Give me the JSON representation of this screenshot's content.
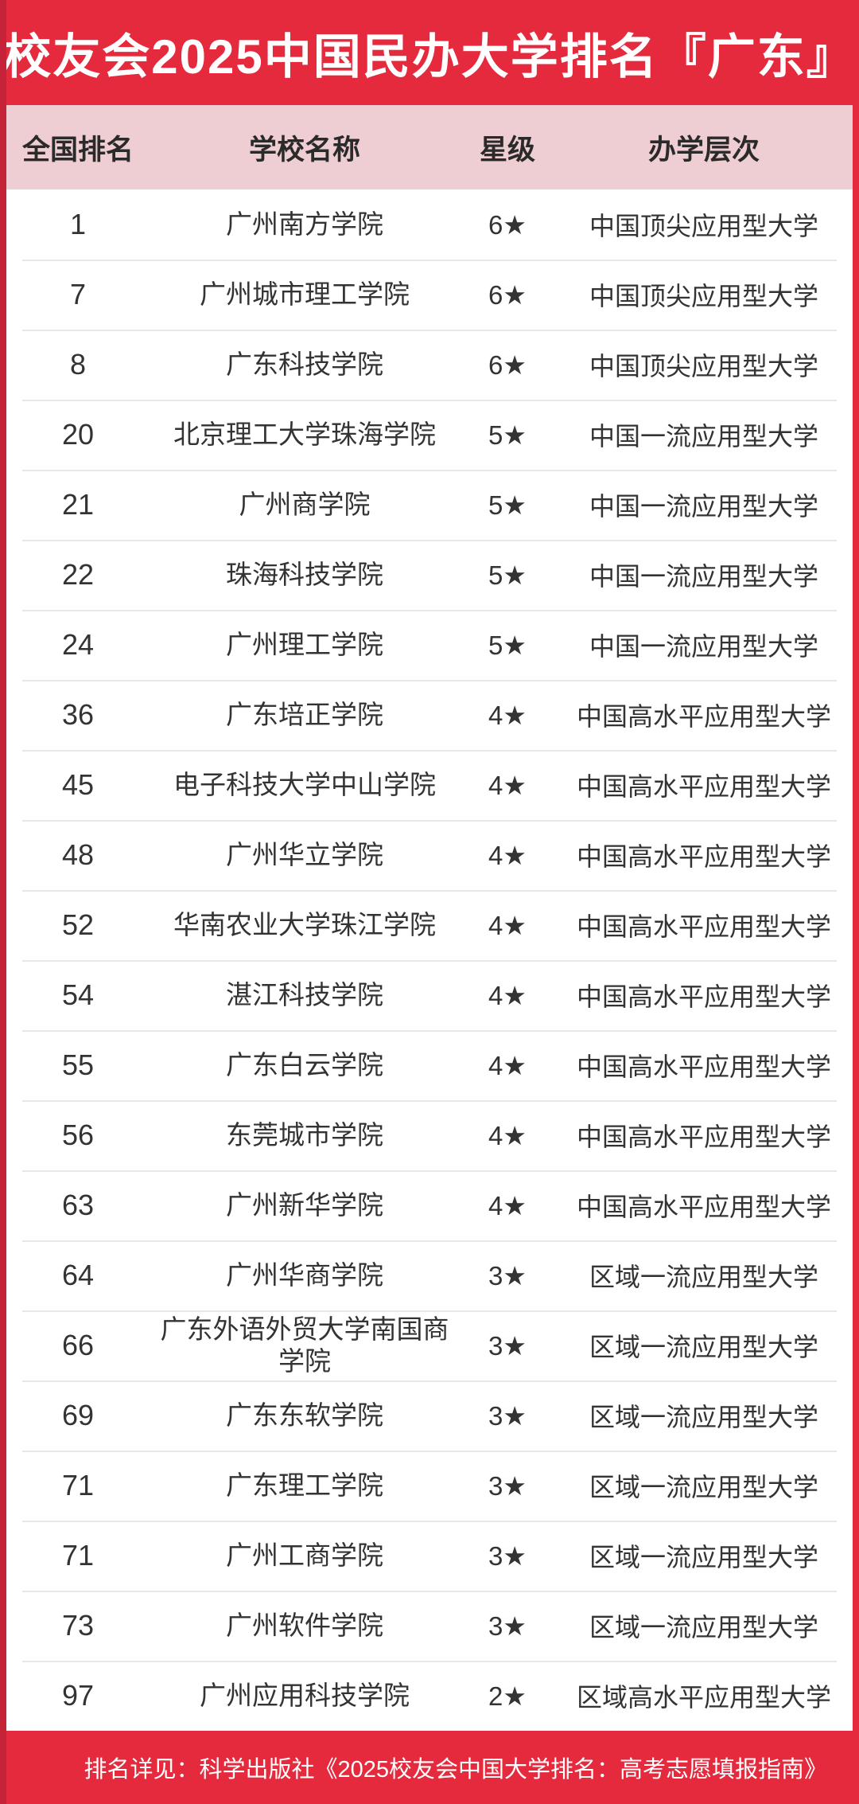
{
  "colors": {
    "background_red": "#e52a3e",
    "edge_dark_red": "#c42338",
    "header_row_pink": "#efced3",
    "row_background": "#ffffff",
    "row_divider_gray": "#e9e6e6",
    "row_text": "#333333",
    "title_text": "#ffffff",
    "footer_text": "#ffffff"
  },
  "chart_data": {
    "type": "table",
    "title": "校友会2025中国民办大学排名『广东』",
    "columns": [
      "全国排名",
      "学校名称",
      "星级",
      "办学层次"
    ],
    "rows": [
      [
        "1",
        "广州南方学院",
        "6★",
        "中国顶尖应用型大学"
      ],
      [
        "7",
        "广州城市理工学院",
        "6★",
        "中国顶尖应用型大学"
      ],
      [
        "8",
        "广东科技学院",
        "6★",
        "中国顶尖应用型大学"
      ],
      [
        "20",
        "北京理工大学珠海学院",
        "5★",
        "中国一流应用型大学"
      ],
      [
        "21",
        "广州商学院",
        "5★",
        "中国一流应用型大学"
      ],
      [
        "22",
        "珠海科技学院",
        "5★",
        "中国一流应用型大学"
      ],
      [
        "24",
        "广州理工学院",
        "5★",
        "中国一流应用型大学"
      ],
      [
        "36",
        "广东培正学院",
        "4★",
        "中国高水平应用型大学"
      ],
      [
        "45",
        "电子科技大学中山学院",
        "4★",
        "中国高水平应用型大学"
      ],
      [
        "48",
        "广州华立学院",
        "4★",
        "中国高水平应用型大学"
      ],
      [
        "52",
        "华南农业大学珠江学院",
        "4★",
        "中国高水平应用型大学"
      ],
      [
        "54",
        "湛江科技学院",
        "4★",
        "中国高水平应用型大学"
      ],
      [
        "55",
        "广东白云学院",
        "4★",
        "中国高水平应用型大学"
      ],
      [
        "56",
        "东莞城市学院",
        "4★",
        "中国高水平应用型大学"
      ],
      [
        "63",
        "广州新华学院",
        "4★",
        "中国高水平应用型大学"
      ],
      [
        "64",
        "广州华商学院",
        "3★",
        "区域一流应用型大学"
      ],
      [
        "66",
        "广东外语外贸大学南国商学院",
        "3★",
        "区域一流应用型大学"
      ],
      [
        "69",
        "广东东软学院",
        "3★",
        "区域一流应用型大学"
      ],
      [
        "71",
        "广东理工学院",
        "3★",
        "区域一流应用型大学"
      ],
      [
        "71",
        "广州工商学院",
        "3★",
        "区域一流应用型大学"
      ],
      [
        "73",
        "广州软件学院",
        "3★",
        "区域一流应用型大学"
      ],
      [
        "97",
        "广州应用科技学院",
        "2★",
        "区域高水平应用型大学"
      ]
    ],
    "footer": "排名详见：科学出版社《2025校友会中国大学排名：高考志愿填报指南》",
    "layout_hints": {
      "header_row_style": "pink band below red title",
      "grid": "horizontal light-gray dividers only",
      "star_glyph": "★"
    }
  }
}
